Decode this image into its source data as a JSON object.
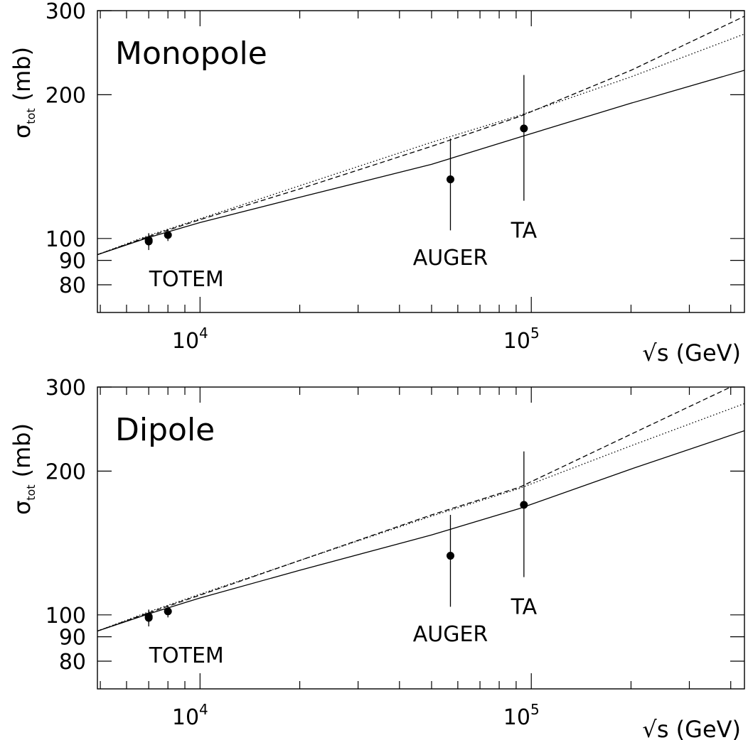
{
  "chart_data": [
    {
      "type": "line",
      "title": "Monopole",
      "xlabel": "√s (GeV)",
      "ylabel": "σ_tot (mb)",
      "ylabel_main": "σ",
      "ylabel_sub": "tot",
      "ylabel_unit": "(mb)",
      "xscale": "log",
      "yscale": "log",
      "xlim": [
        4900,
        440000
      ],
      "ylim": [
        70,
        300
      ],
      "x_ticks": [
        {
          "value": 10000,
          "base": "10",
          "exp": "4"
        },
        {
          "value": 100000,
          "base": "10",
          "exp": "5"
        }
      ],
      "y_ticks": [
        {
          "value": 80,
          "label": "80"
        },
        {
          "value": 90,
          "label": "90"
        },
        {
          "value": 100,
          "label": "100"
        },
        {
          "value": 200,
          "label": "200"
        },
        {
          "value": 300,
          "label": "300"
        }
      ],
      "series": [
        {
          "style": "solid",
          "x": [
            4900,
            7000,
            10000,
            20000,
            50000,
            92000,
            200000,
            440000
          ],
          "y": [
            92.5,
            100.5,
            108,
            122,
            143,
            163,
            192,
            225
          ]
        },
        {
          "style": "dashed",
          "x": [
            4900,
            7000,
            10000,
            20000,
            50000,
            92000,
            200000,
            440000
          ],
          "y": [
            92.5,
            101,
            109.5,
            127,
            156,
            180,
            225,
            292
          ]
        },
        {
          "style": "dotted",
          "x": [
            4900,
            7000,
            10000,
            20000,
            50000,
            92000,
            200000,
            440000
          ],
          "y": [
            92.5,
            101.5,
            110,
            129,
            159,
            181,
            218,
            268
          ]
        }
      ],
      "points": [
        {
          "name": "TOTEM",
          "x": 7000,
          "y": 98.6,
          "err_low": 4,
          "err_high": 4
        },
        {
          "name": "TOTEM",
          "x": 7000,
          "y": 99.2,
          "err_low": 3,
          "err_high": 3
        },
        {
          "name": "TOTEM",
          "x": 8000,
          "y": 101.7,
          "err_low": 2.9,
          "err_high": 2.9
        },
        {
          "name": "AUGER",
          "x": 57000,
          "y": 133,
          "err_low": 29,
          "err_high": 29
        },
        {
          "name": "TA",
          "x": 95000,
          "y": 170,
          "err_low": 50,
          "err_high": 50
        }
      ],
      "labels": [
        {
          "text": "TOTEM",
          "x": 9100,
          "y": 79.5
        },
        {
          "text": "AUGER",
          "x": 57000,
          "y": 88
        },
        {
          "text": "TA",
          "x": 95000,
          "y": 100.5
        }
      ]
    },
    {
      "type": "line",
      "title": "Dipole",
      "xlabel": "√s (GeV)",
      "ylabel": "σ_tot (mb)",
      "ylabel_main": "σ",
      "ylabel_sub": "tot",
      "ylabel_unit": "(mb)",
      "xscale": "log",
      "yscale": "log",
      "xlim": [
        4900,
        440000
      ],
      "ylim": [
        70,
        300
      ],
      "x_ticks": [
        {
          "value": 10000,
          "base": "10",
          "exp": "4"
        },
        {
          "value": 100000,
          "base": "10",
          "exp": "5"
        }
      ],
      "y_ticks": [
        {
          "value": 80,
          "label": "80"
        },
        {
          "value": 90,
          "label": "90"
        },
        {
          "value": 100,
          "label": "100"
        },
        {
          "value": 200,
          "label": "200"
        },
        {
          "value": 300,
          "label": "300"
        }
      ],
      "series": [
        {
          "style": "solid",
          "x": [
            4900,
            7000,
            10000,
            20000,
            50000,
            92000,
            200000,
            440000
          ],
          "y": [
            92.5,
            100.5,
            108.5,
            124,
            147,
            167,
            202,
            243
          ]
        },
        {
          "style": "dashed",
          "x": [
            4900,
            7000,
            10000,
            20000,
            50000,
            92000,
            200000,
            400000
          ],
          "y": [
            92.5,
            101,
            110,
            130,
            162,
            185,
            239,
            300
          ]
        },
        {
          "style": "dotted",
          "x": [
            4900,
            7000,
            10000,
            20000,
            50000,
            92000,
            200000,
            440000
          ],
          "y": [
            92.5,
            101.5,
            110.5,
            130,
            161,
            184,
            226,
            277
          ]
        }
      ],
      "points": [
        {
          "name": "TOTEM",
          "x": 7000,
          "y": 98.6,
          "err_low": 4,
          "err_high": 4
        },
        {
          "name": "TOTEM",
          "x": 7000,
          "y": 99.2,
          "err_low": 3,
          "err_high": 3
        },
        {
          "name": "TOTEM",
          "x": 8000,
          "y": 101.7,
          "err_low": 2.9,
          "err_high": 2.9
        },
        {
          "name": "AUGER",
          "x": 57000,
          "y": 133,
          "err_low": 29,
          "err_high": 29
        },
        {
          "name": "TA",
          "x": 95000,
          "y": 170,
          "err_low": 50,
          "err_high": 50
        }
      ],
      "labels": [
        {
          "text": "TOTEM",
          "x": 9100,
          "y": 79.5
        },
        {
          "text": "AUGER",
          "x": 57000,
          "y": 88
        },
        {
          "text": "TA",
          "x": 95000,
          "y": 100.5
        }
      ]
    }
  ]
}
